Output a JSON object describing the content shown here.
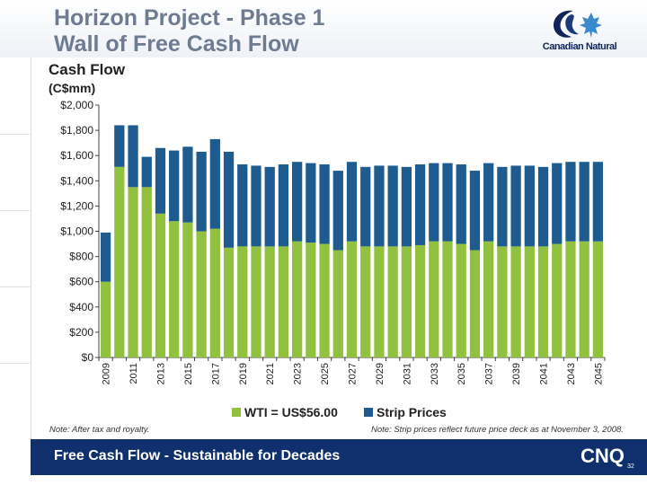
{
  "slide": {
    "title_line1": "Horizon Project - Phase 1",
    "title_line2": "Wall of Free Cash Flow",
    "logo_text": "Canadian Natural",
    "footer_text": "Free Cash Flow - Sustainable for Decades",
    "footer_brand": "CNQ",
    "page_number": "32",
    "note_left": "Note: After tax and royalty.",
    "note_right": "Note: Strip prices reflect future price deck as at November 3, 2008.",
    "colors": {
      "navy": "#10306d",
      "green": "#92c13f",
      "blue": "#1e5b8f",
      "title": "#6e7b91"
    }
  },
  "chart_data": {
    "type": "bar",
    "stacked": true,
    "title": "Cash Flow",
    "ylabel": "(C$mm)",
    "xlabel": "",
    "ylim": [
      0,
      2000
    ],
    "yticks": [
      0,
      200,
      400,
      600,
      800,
      1000,
      1200,
      1400,
      1600,
      1800,
      2000
    ],
    "ytick_labels": [
      "$0",
      "$200",
      "$400",
      "$600",
      "$800",
      "$1,000",
      "$1,200",
      "$1,400",
      "$1,600",
      "$1,800",
      "$2,000"
    ],
    "categories": [
      "2009",
      "2010",
      "2011",
      "2012",
      "2013",
      "2014",
      "2015",
      "2016",
      "2017",
      "2018",
      "2019",
      "2020",
      "2021",
      "2022",
      "2023",
      "2024",
      "2025",
      "2026",
      "2027",
      "2028",
      "2029",
      "2030",
      "2031",
      "2032",
      "2033",
      "2034",
      "2035",
      "2036",
      "2037",
      "2038",
      "2039",
      "2040",
      "2041",
      "2042",
      "2043",
      "2044",
      "2045"
    ],
    "xtick_labels": [
      "2009",
      "",
      "2011",
      "",
      "2013",
      "",
      "2015",
      "",
      "2017",
      "",
      "2019",
      "",
      "2021",
      "",
      "2023",
      "",
      "2025",
      "",
      "2027",
      "",
      "2029",
      "",
      "2031",
      "",
      "2033",
      "",
      "2035",
      "",
      "2037",
      "",
      "2039",
      "",
      "2041",
      "",
      "2043",
      "",
      "2045"
    ],
    "series": [
      {
        "name": "WTI = US$56.00",
        "color": "#92c13f",
        "values": [
          600,
          1510,
          1350,
          1350,
          1140,
          1080,
          1070,
          1000,
          1020,
          870,
          880,
          880,
          880,
          880,
          920,
          910,
          900,
          850,
          920,
          880,
          880,
          880,
          880,
          890,
          920,
          920,
          900,
          850,
          920,
          880,
          880,
          880,
          880,
          900,
          920,
          920,
          920
        ]
      },
      {
        "name": "Strip Prices",
        "color": "#1e5b8f",
        "values": [
          390,
          330,
          490,
          240,
          520,
          560,
          600,
          630,
          710,
          760,
          650,
          640,
          630,
          650,
          630,
          630,
          630,
          630,
          630,
          630,
          640,
          640,
          630,
          640,
          620,
          620,
          630,
          630,
          620,
          630,
          640,
          640,
          630,
          640,
          630,
          630,
          630
        ]
      }
    ],
    "legend": {
      "position": "bottom"
    },
    "grid": false
  }
}
